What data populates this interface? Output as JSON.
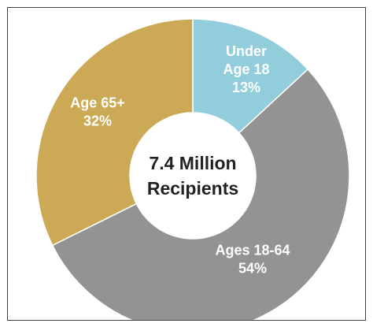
{
  "chart_data": {
    "type": "pie",
    "variant": "donut",
    "center_label": [
      "7.4 Million",
      "Recipients"
    ],
    "slices": [
      {
        "label_lines": [
          "Under",
          "Age 18",
          "13%"
        ],
        "category": "Under Age 18",
        "value": 13,
        "color": "#92cddc"
      },
      {
        "label_lines": [
          "Ages 18-64",
          "54%"
        ],
        "category": "Ages 18-64",
        "value": 54,
        "color": "#939393"
      },
      {
        "label_lines": [
          "Age 65+",
          "32%"
        ],
        "category": "Age 65+",
        "value": 32,
        "color": "#ccaa55"
      }
    ]
  }
}
